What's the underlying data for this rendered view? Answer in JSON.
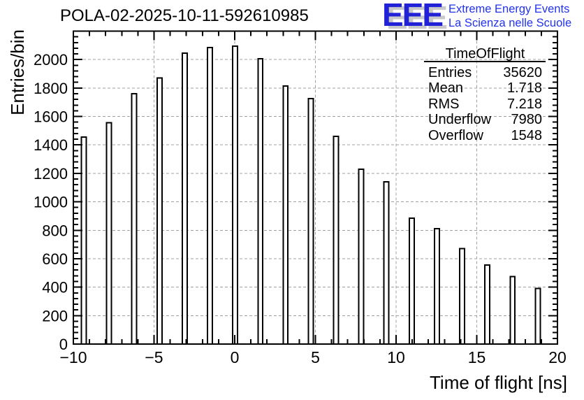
{
  "header": {
    "plot_title": "POLA-02-2025-10-11-592610985",
    "logo": {
      "acronym": "EEE",
      "line1": "Extreme Energy Events",
      "line2": "La Scienza nelle Scuole",
      "blue": "#2121d8",
      "text_blue": "#2233ee",
      "shadow_gray": "#c9c9c9"
    }
  },
  "stats": {
    "title": "TimeOfFlight",
    "rows": [
      {
        "label": "Entries",
        "value": "35620"
      },
      {
        "label": "Mean",
        "value": "1.718"
      },
      {
        "label": "RMS",
        "value": "7.218"
      },
      {
        "label": "Underflow",
        "value": "7980"
      },
      {
        "label": "Overflow",
        "value": "1548"
      }
    ]
  },
  "chart_data": {
    "type": "bar",
    "title": "POLA-02-2025-10-11-592610985",
    "xlabel": "Time of flight [ns]",
    "ylabel": "Entries/bin",
    "xlim": [
      -10,
      20
    ],
    "ylim": [
      0,
      2200
    ],
    "grid": true,
    "grid_color": "#a0a0a0",
    "bar_fill": "#ffffff",
    "bar_stroke": "#000000",
    "x_major_ticks": [
      -10,
      -5,
      0,
      5,
      10,
      15,
      20
    ],
    "x_tick_labels": [
      "−10",
      "−5",
      "0",
      "5",
      "10",
      "15",
      "20"
    ],
    "x_minor_step": 1,
    "y_major_step": 200,
    "y_minor_step": 40,
    "bin_width": 0.3,
    "x": [
      -9.35,
      -7.79,
      -6.23,
      -4.66,
      -3.1,
      -1.54,
      0.03,
      1.59,
      3.15,
      4.72,
      6.28,
      7.84,
      9.4,
      10.97,
      12.53,
      14.09,
      15.65,
      17.22,
      18.78
    ],
    "values": [
      1455,
      1555,
      1760,
      1870,
      2045,
      2085,
      2095,
      2005,
      1815,
      1725,
      1460,
      1230,
      1140,
      885,
      810,
      670,
      555,
      475,
      390
    ]
  }
}
